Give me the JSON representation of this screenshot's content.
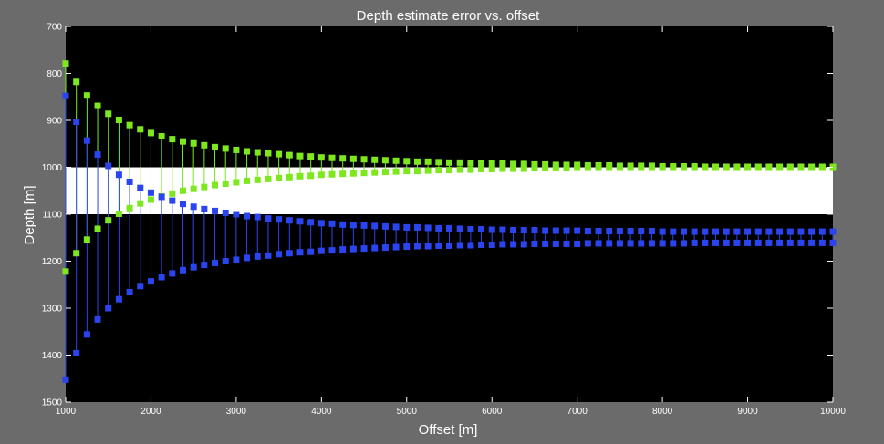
{
  "chart_data": {
    "type": "scatter",
    "title": "Depth estimate error vs. offset",
    "xlabel": "Offset [m]",
    "ylabel": "Depth [m]",
    "xlim": [
      1000,
      10000
    ],
    "ylim": [
      700,
      1500
    ],
    "y_reversed": true,
    "grid": false,
    "legend": "none",
    "xticks": [
      "1000",
      "2000",
      "3000",
      "4000",
      "5000",
      "6000",
      "7000",
      "8000",
      "9000",
      "10000"
    ],
    "yticks": [
      "700",
      "800",
      "900",
      "1000",
      "1100",
      "1200",
      "1300",
      "1400",
      "1500"
    ],
    "band": {
      "y_top": 1000,
      "y_bottom": 1100,
      "color": "#ffffff"
    },
    "background": "#000000",
    "colors": {
      "green": "#7ee81f",
      "blue": "#2a45f0",
      "tick_color": "#ffffff"
    },
    "x": [
      1000,
      1125,
      1250,
      1375,
      1500,
      1625,
      1750,
      1875,
      2000,
      2125,
      2250,
      2375,
      2500,
      2625,
      2750,
      2875,
      3000,
      3125,
      3250,
      3375,
      3500,
      3625,
      3750,
      3875,
      4000,
      4125,
      4250,
      4375,
      4500,
      4625,
      4750,
      4875,
      5000,
      5125,
      5250,
      5375,
      5500,
      5625,
      5750,
      5875,
      6000,
      6125,
      6250,
      6375,
      6500,
      6625,
      6750,
      6875,
      7000,
      7125,
      7250,
      7375,
      7500,
      7625,
      7750,
      7875,
      8000,
      8125,
      8250,
      8375,
      8500,
      8625,
      8750,
      8875,
      9000,
      9125,
      9250,
      9375,
      9500,
      9625,
      9750,
      9875,
      10000
    ],
    "series": [
      {
        "color": "green",
        "values": [
          779,
          818,
          847,
          869,
          886,
          899,
          910,
          919,
          927,
          934,
          940,
          945,
          949,
          953,
          957,
          960,
          963,
          966,
          968,
          970,
          972,
          974,
          976,
          977,
          979,
          980,
          981,
          982,
          983,
          984,
          985,
          986,
          987,
          988,
          988,
          989,
          990,
          990,
          991,
          991,
          992,
          992,
          993,
          993,
          994,
          994,
          995,
          995,
          995,
          996,
          996,
          996,
          997,
          997,
          997,
          997,
          998,
          998,
          998,
          998,
          999,
          999,
          999,
          999,
          999,
          999,
          999,
          999,
          999,
          999,
          999,
          999,
          999
        ]
      },
      {
        "color": "green",
        "values": [
          1222,
          1183,
          1154,
          1131,
          1113,
          1099,
          1087,
          1077,
          1069,
          1062,
          1056,
          1050,
          1046,
          1042,
          1038,
          1035,
          1032,
          1029,
          1027,
          1025,
          1023,
          1021,
          1019,
          1018,
          1016,
          1015,
          1014,
          1013,
          1012,
          1011,
          1010,
          1009,
          1008,
          1008,
          1007,
          1006,
          1006,
          1005,
          1005,
          1004,
          1004,
          1003,
          1003,
          1003,
          1002,
          1002,
          1002,
          1002,
          1001,
          1001,
          1001,
          1001,
          1001,
          1001,
          1001,
          1001,
          1001,
          1001,
          1001,
          1001,
          1001,
          1001,
          1001,
          1001,
          1001,
          1001,
          1001,
          1001,
          1001,
          1001,
          1001,
          1001,
          1001
        ]
      },
      {
        "color": "blue",
        "values": [
          848,
          903,
          943,
          973,
          997,
          1016,
          1031,
          1044,
          1054,
          1063,
          1071,
          1078,
          1084,
          1089,
          1093,
          1097,
          1100,
          1104,
          1106,
          1109,
          1111,
          1113,
          1115,
          1117,
          1119,
          1120,
          1122,
          1123,
          1124,
          1125,
          1126,
          1127,
          1128,
          1128,
          1129,
          1130,
          1130,
          1131,
          1132,
          1132,
          1133,
          1133,
          1134,
          1134,
          1134,
          1135,
          1135,
          1135,
          1135,
          1136,
          1136,
          1136,
          1136,
          1136,
          1136,
          1136,
          1137,
          1137,
          1137,
          1137,
          1137,
          1137,
          1137,
          1137,
          1137,
          1137,
          1137,
          1137,
          1137,
          1137,
          1137,
          1137,
          1137
        ]
      },
      {
        "color": "blue",
        "values": [
          1452,
          1396,
          1356,
          1324,
          1300,
          1281,
          1266,
          1253,
          1243,
          1234,
          1226,
          1219,
          1213,
          1208,
          1204,
          1200,
          1197,
          1193,
          1190,
          1188,
          1185,
          1183,
          1181,
          1180,
          1178,
          1177,
          1175,
          1174,
          1173,
          1172,
          1171,
          1170,
          1169,
          1168,
          1168,
          1167,
          1167,
          1166,
          1166,
          1165,
          1165,
          1164,
          1164,
          1164,
          1163,
          1163,
          1163,
          1163,
          1163,
          1162,
          1162,
          1162,
          1162,
          1162,
          1162,
          1162,
          1162,
          1162,
          1162,
          1161,
          1161,
          1161,
          1161,
          1161,
          1161,
          1161,
          1161,
          1161,
          1161,
          1161,
          1161,
          1161,
          1161
        ]
      }
    ]
  }
}
